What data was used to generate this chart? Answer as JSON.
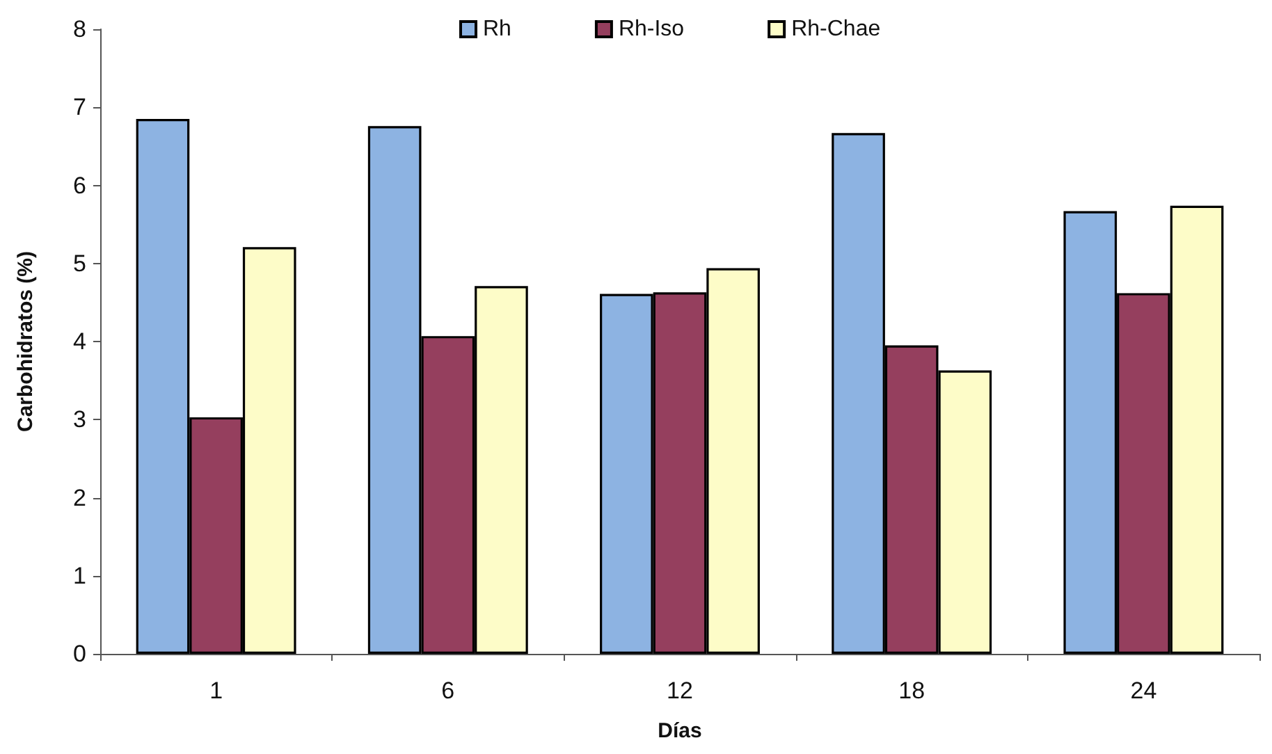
{
  "chart_data": {
    "type": "bar",
    "xlabel": "Días",
    "ylabel": "Carbohidratos (%)",
    "categories": [
      "1",
      "6",
      "12",
      "18",
      "24"
    ],
    "series": [
      {
        "name": "Rh",
        "color": "#8db3e2",
        "values": [
          6.85,
          6.76,
          4.61,
          6.67,
          5.67
        ]
      },
      {
        "name": "Rh-Iso",
        "color": "#953f5e",
        "values": [
          3.03,
          4.07,
          4.63,
          3.95,
          4.62
        ]
      },
      {
        "name": "Rh-Chae",
        "color": "#fdfcc8",
        "values": [
          5.21,
          4.71,
          4.94,
          3.63,
          5.74
        ]
      }
    ],
    "ylim": [
      0,
      8
    ],
    "yticks": [
      0,
      1,
      2,
      3,
      4,
      5,
      6,
      7,
      8
    ],
    "legend": "top"
  }
}
